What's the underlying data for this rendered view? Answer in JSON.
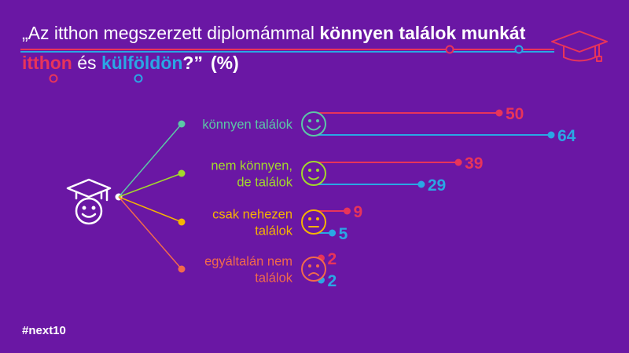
{
  "title": {
    "part1": "„Az itthon megszerzett diplomámmal ",
    "part1_bold": "könnyen találok munkát",
    "part2_home": "itthon",
    "part2_mid": " és ",
    "part2_abroad": "külföldön",
    "part2_end": "?”",
    "unit": "(%)"
  },
  "legend": {
    "home_color": "#e8345a",
    "abroad_color": "#2aa7e4"
  },
  "logo": "#next10",
  "icons": {
    "header": "graduation-cap-icon",
    "person": "graduate-smiley-icon",
    "faces": [
      "big-smile-icon",
      "smile-icon",
      "neutral-face-icon",
      "sad-face-icon"
    ]
  },
  "colors": {
    "background": "#6a17a4",
    "categories": [
      "#5bc8a6",
      "#a3d92b",
      "#f6b400",
      "#f26a4b"
    ]
  },
  "chart_data": {
    "type": "bar",
    "categories": [
      [
        "könnyen találok"
      ],
      [
        "nem könnyen,",
        "de találok"
      ],
      [
        "csak nehezen",
        "találok"
      ],
      [
        "egyáltalán nem",
        "találok"
      ]
    ],
    "series": [
      {
        "name": "itthon",
        "color": "#e8345a",
        "values": [
          50,
          39,
          9,
          2
        ]
      },
      {
        "name": "külföldön",
        "color": "#2aa7e4",
        "values": [
          64,
          29,
          5,
          2
        ]
      }
    ],
    "value_labels": [
      [
        "50",
        "39",
        "9",
        "2"
      ],
      [
        "64",
        "29",
        "5",
        "2"
      ]
    ],
    "ylim": [
      0,
      64
    ]
  }
}
